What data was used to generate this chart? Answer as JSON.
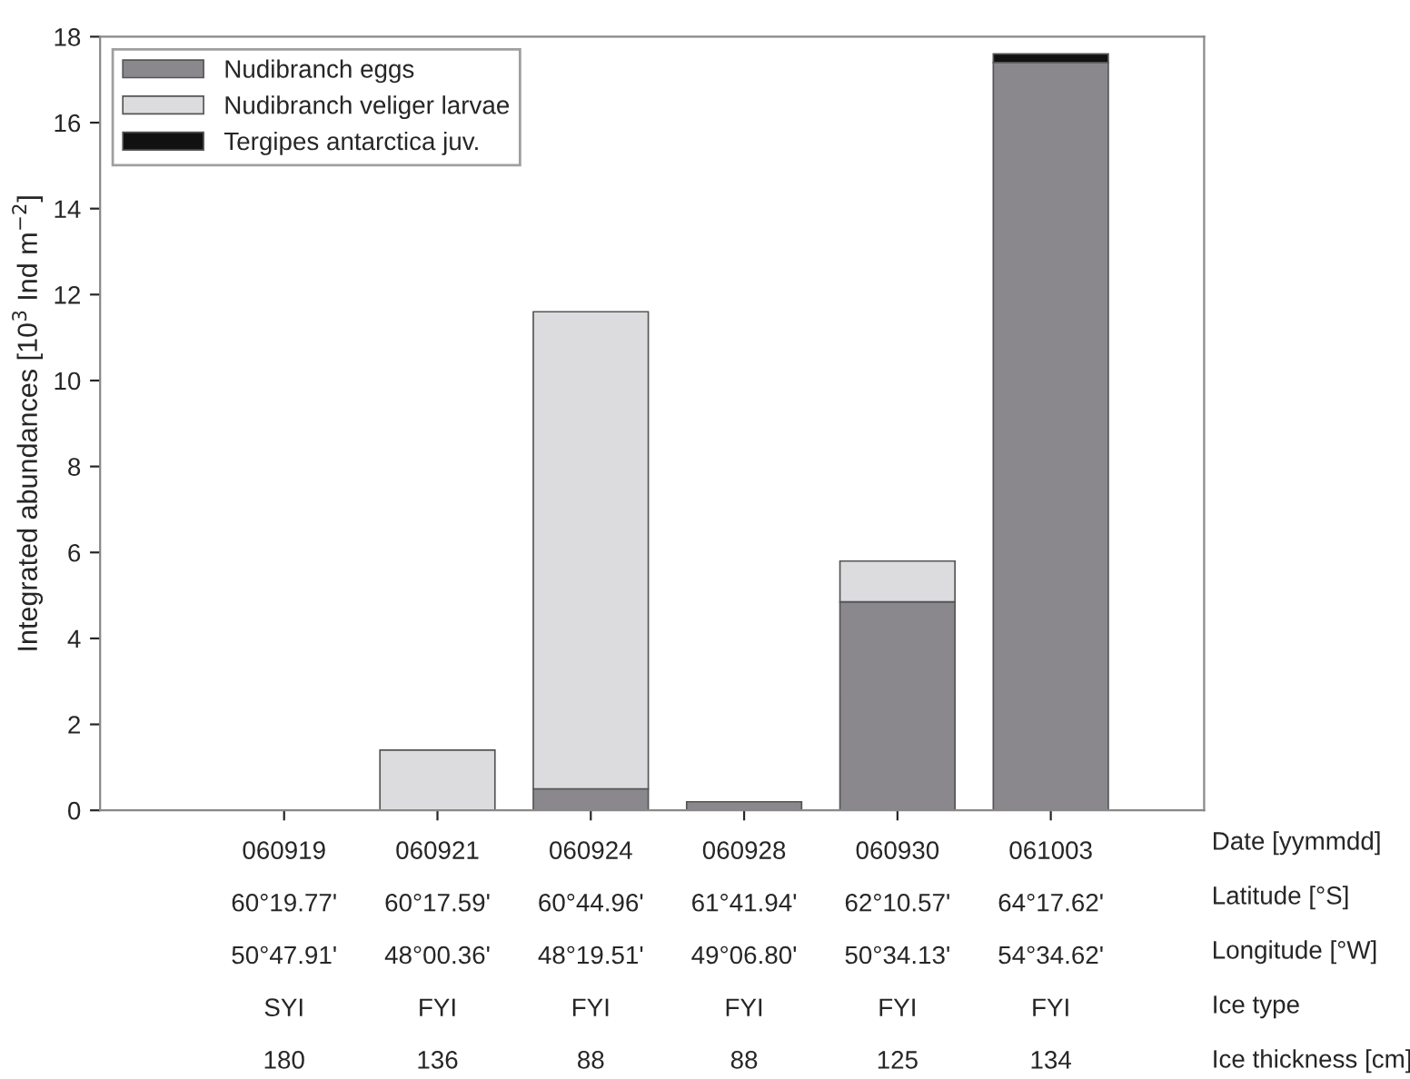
{
  "chart_data": {
    "type": "bar",
    "stacked": true,
    "ylabel": "Integrated abundances [10$^{3}$ Ind m$^{−2}$]",
    "categories": [
      "060919\n60°19.77'\n50°47.91'\nSYI\n180",
      "060921\n60°17.59'\n48°00.36'\nFYI\n136",
      "060924\n60°44.96'\n48°19.51'\nFYI\n88",
      "060928\n61°41.94'\n49°06.80'\nFYI\n88",
      "060930\n62°10.57'\n50°34.13'\nFYI\n125",
      "061003\n64°17.62'\n54°34.62'\nFYI\n134"
    ],
    "series": [
      {
        "name": "Nudibranch eggs",
        "color": "#8a888d",
        "values": [
          null,
          null,
          0.5,
          0.2,
          4.85,
          17.4
        ]
      },
      {
        "name": "Nudibranch veliger larvae",
        "color": "#dcdcde",
        "values": [
          null,
          1.4,
          11.1,
          null,
          0.95,
          null
        ]
      },
      {
        "name": "Tergipes antarctica juv.",
        "color": "#111111",
        "values": [
          null,
          null,
          null,
          null,
          null,
          0.2
        ]
      }
    ],
    "ylim": [
      0,
      18
    ],
    "yticks": [
      0,
      2,
      4,
      6,
      8,
      10,
      12,
      14,
      16,
      18
    ],
    "grid": false,
    "legend": "top left",
    "annotations": [
      "Date [yymmdd]",
      "Latitude [°S]",
      "Longitude [°W]",
      "Ice type",
      "Ice thickness [cm]"
    ]
  }
}
